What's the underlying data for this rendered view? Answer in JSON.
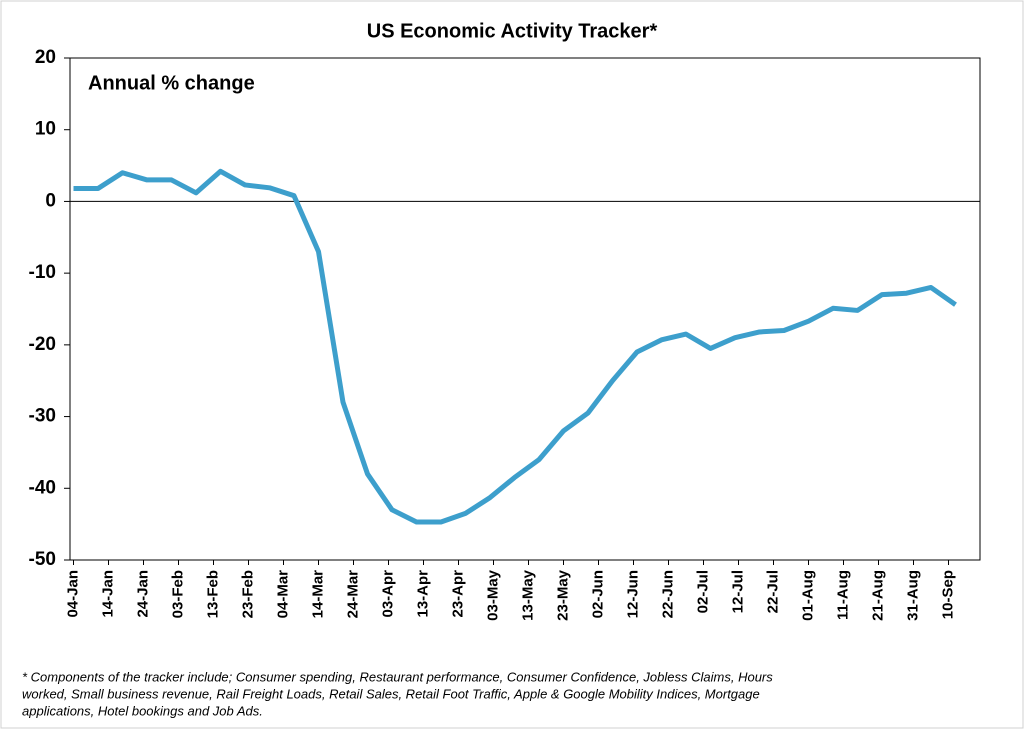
{
  "chart_data": {
    "type": "line",
    "title": "US Economic Activity Tracker*",
    "y_label": "Annual % change",
    "footnote": [
      "* Components of the tracker include; Consumer spending, Restaurant performance, Consumer Confidence, Jobless Claims, Hours",
      "worked, Small business revenue, Rail Freight Loads, Retail Sales, Retail Foot Traffic, Apple & Google Mobility Indices, Mortgage",
      "applications, Hotel bookings and Job Ads."
    ],
    "x": [
      "04-Jan",
      "11-Jan",
      "18-Jan",
      "25-Jan",
      "01-Feb",
      "08-Feb",
      "15-Feb",
      "22-Feb",
      "29-Feb",
      "07-Mar",
      "14-Mar",
      "21-Mar",
      "28-Mar",
      "04-Apr",
      "11-Apr",
      "18-Apr",
      "25-Apr",
      "02-May",
      "09-May",
      "16-May",
      "23-May",
      "30-May",
      "06-Jun",
      "13-Jun",
      "20-Jun",
      "27-Jun",
      "04-Jul",
      "11-Jul",
      "18-Jul",
      "25-Jul",
      "01-Aug",
      "08-Aug",
      "15-Aug",
      "22-Aug",
      "29-Aug",
      "05-Sep",
      "12-Sep"
    ],
    "series": [
      {
        "name": "US Economic Activity Tracker",
        "color": "#3d9fcc",
        "values": [
          1.8,
          1.8,
          4,
          3,
          3,
          1.2,
          4.2,
          2.3,
          1.9,
          0.8,
          -7,
          -28,
          -38,
          -43,
          -44.7,
          -44.7,
          -43.5,
          -41.3,
          -38.5,
          -36,
          -32,
          -29.5,
          -25,
          -21,
          -19.3,
          -18.5,
          -20.5,
          -19,
          -18.2,
          -18,
          -16.7,
          -14.9,
          -15.2,
          -13,
          -12.8,
          -12,
          -14.4
        ]
      }
    ],
    "xlim": [
      "03-Jan",
      "19-Sep"
    ],
    "xticks": [
      "04-Jan",
      "14-Jan",
      "24-Jan",
      "03-Feb",
      "13-Feb",
      "23-Feb",
      "04-Mar",
      "14-Mar",
      "24-Mar",
      "03-Apr",
      "13-Apr",
      "23-Apr",
      "03-May",
      "13-May",
      "23-May",
      "02-Jun",
      "12-Jun",
      "22-Jun",
      "02-Jul",
      "12-Jul",
      "22-Jul",
      "01-Aug",
      "11-Aug",
      "21-Aug",
      "31-Aug",
      "10-Sep"
    ],
    "ylim": [
      -50,
      20
    ],
    "yticks": [
      20,
      10,
      0,
      -10,
      -20,
      -30,
      -40,
      -50
    ],
    "grid": false
  }
}
